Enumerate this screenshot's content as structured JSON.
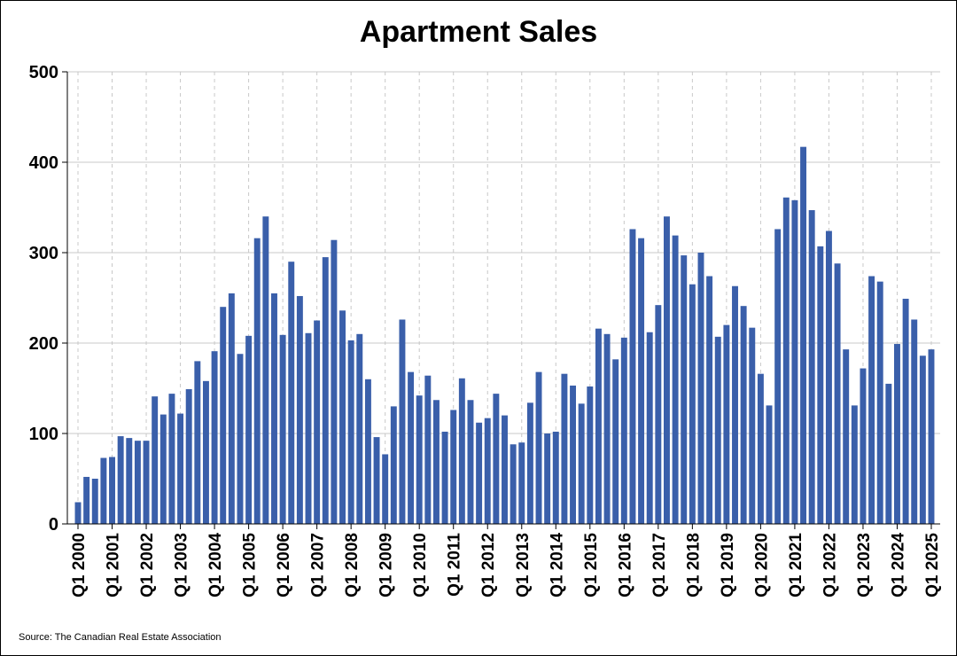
{
  "chart_data": {
    "type": "bar",
    "title": "Apartment Sales",
    "xlabel": "",
    "ylabel": "",
    "ylim": [
      0,
      500
    ],
    "yticks": [
      0,
      100,
      200,
      300,
      400,
      500
    ],
    "grid": true,
    "legend": "none",
    "colors": {
      "bar": "#3A5FAA",
      "grid": "#C8C8C8",
      "axis": "#000000"
    },
    "categories": [
      "Q1 2000",
      "Q2 2000",
      "Q3 2000",
      "Q4 2000",
      "Q1 2001",
      "Q2 2001",
      "Q3 2001",
      "Q4 2001",
      "Q1 2002",
      "Q2 2002",
      "Q3 2002",
      "Q4 2002",
      "Q1 2003",
      "Q2 2003",
      "Q3 2003",
      "Q4 2003",
      "Q1 2004",
      "Q2 2004",
      "Q3 2004",
      "Q4 2004",
      "Q1 2005",
      "Q2 2005",
      "Q3 2005",
      "Q4 2005",
      "Q1 2006",
      "Q2 2006",
      "Q3 2006",
      "Q4 2006",
      "Q1 2007",
      "Q2 2007",
      "Q3 2007",
      "Q4 2007",
      "Q1 2008",
      "Q2 2008",
      "Q3 2008",
      "Q4 2008",
      "Q1 2009",
      "Q2 2009",
      "Q3 2009",
      "Q4 2009",
      "Q1 2010",
      "Q2 2010",
      "Q3 2010",
      "Q4 2010",
      "Q1 2011",
      "Q2 2011",
      "Q3 2011",
      "Q4 2011",
      "Q1 2012",
      "Q2 2012",
      "Q3 2012",
      "Q4 2012",
      "Q1 2013",
      "Q2 2013",
      "Q3 2013",
      "Q4 2013",
      "Q1 2014",
      "Q2 2014",
      "Q3 2014",
      "Q4 2014",
      "Q1 2015",
      "Q2 2015",
      "Q3 2015",
      "Q4 2015",
      "Q1 2016",
      "Q2 2016",
      "Q3 2016",
      "Q4 2016",
      "Q1 2017",
      "Q2 2017",
      "Q3 2017",
      "Q4 2017",
      "Q1 2018",
      "Q2 2018",
      "Q3 2018",
      "Q4 2018",
      "Q1 2019",
      "Q2 2019",
      "Q3 2019",
      "Q4 2019",
      "Q1 2020",
      "Q2 2020",
      "Q3 2020",
      "Q4 2020",
      "Q1 2021",
      "Q2 2021",
      "Q3 2021",
      "Q4 2021",
      "Q1 2022",
      "Q2 2022",
      "Q3 2022",
      "Q4 2022",
      "Q1 2023",
      "Q2 2023",
      "Q3 2023",
      "Q4 2023",
      "Q1 2024",
      "Q2 2024",
      "Q3 2024",
      "Q4 2024",
      "Q1 2025"
    ],
    "xtick_labels": [
      "Q1 2000",
      "Q1 2001",
      "Q1 2002",
      "Q1 2003",
      "Q1 2004",
      "Q1 2005",
      "Q1 2006",
      "Q1 2007",
      "Q1 2008",
      "Q1 2009",
      "Q1 2010",
      "Q1 2011",
      "Q1 2012",
      "Q1 2013",
      "Q1 2014",
      "Q1 2015",
      "Q1 2016",
      "Q1 2017",
      "Q1 2018",
      "Q1 2019",
      "Q1 2020",
      "Q1 2021",
      "Q1 2022",
      "Q1 2023",
      "Q1 2024",
      "Q1 2025"
    ],
    "values": [
      24,
      52,
      50,
      73,
      74,
      97,
      95,
      92,
      92,
      141,
      121,
      144,
      122,
      149,
      180,
      158,
      191,
      240,
      255,
      188,
      208,
      316,
      340,
      255,
      209,
      290,
      252,
      211,
      225,
      295,
      314,
      236,
      203,
      210,
      160,
      96,
      77,
      130,
      226,
      168,
      142,
      164,
      137,
      102,
      126,
      161,
      137,
      112,
      117,
      144,
      120,
      88,
      90,
      134,
      168,
      100,
      102,
      166,
      153,
      133,
      152,
      216,
      210,
      182,
      206,
      326,
      316,
      212,
      242,
      340,
      319,
      297,
      265,
      300,
      274,
      207,
      220,
      263,
      241,
      217,
      166,
      131,
      326,
      361,
      358,
      417,
      347,
      307,
      324,
      288,
      193,
      131,
      172,
      274,
      268,
      155,
      199,
      249,
      226,
      186,
      193
    ]
  },
  "source": "Source: The Canadian Real Estate Association"
}
